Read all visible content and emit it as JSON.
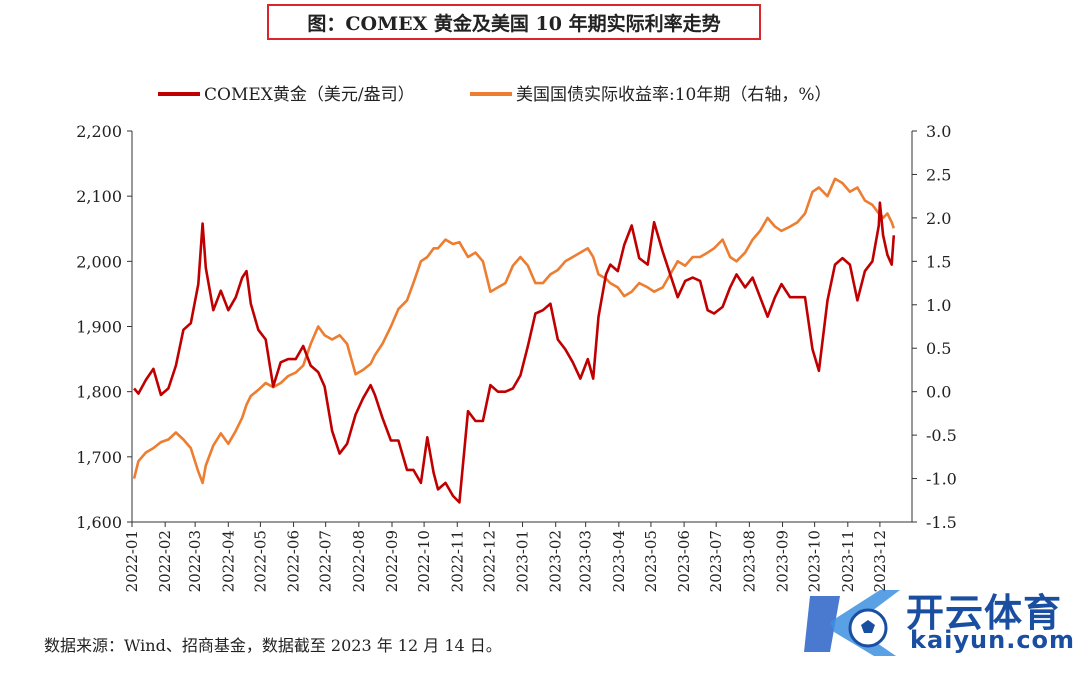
{
  "title": "图：COMEX 黄金及美国 10 年期实际利率走势",
  "source": "数据来源：Wind、招商基金，数据截至 2023 年 12 月 14 日。",
  "watermark": {
    "text": "开云体育",
    "sub": "kaiyun.com",
    "icon": "soccer-ball-icon"
  },
  "colors": {
    "gold": "#c00000",
    "rate": "#ed7d31",
    "title_border": "#d9262c",
    "watermark": "#1a4ea0"
  },
  "chart_data": {
    "type": "line",
    "legend_position": "top",
    "grid": false,
    "categories": [
      "2022-01",
      "2022-02",
      "2022-03",
      "2022-04",
      "2022-05",
      "2022-06",
      "2022-07",
      "2022-08",
      "2022-09",
      "2022-10",
      "2022-11",
      "2022-12",
      "2023-01",
      "2023-02",
      "2023-03",
      "2023-04",
      "2023-05",
      "2023-06",
      "2023-07",
      "2023-08",
      "2023-09",
      "2023-10",
      "2023-11",
      "2023-12"
    ],
    "y_left": {
      "ticks": [
        "1,600",
        "1,700",
        "1,800",
        "1,900",
        "2,000",
        "2,100",
        "2,200"
      ],
      "range": [
        1600,
        2200
      ]
    },
    "y_right": {
      "ticks": [
        "-1.5",
        "-1.0",
        "-0.5",
        "0.0",
        "0.5",
        "1.0",
        "1.5",
        "2.0",
        "2.5",
        "3.0"
      ],
      "range": [
        -1.5,
        3.0
      ]
    },
    "series": [
      {
        "name": "COMEX黄金（美元/盎司）",
        "axis": "left",
        "color": "#c00000",
        "points": [
          [
            "2022-01-03",
            1805
          ],
          [
            "2022-01-07",
            1797
          ],
          [
            "2022-01-14",
            1818
          ],
          [
            "2022-01-21",
            1835
          ],
          [
            "2022-01-28",
            1795
          ],
          [
            "2022-02-04",
            1805
          ],
          [
            "2022-02-11",
            1840
          ],
          [
            "2022-02-18",
            1895
          ],
          [
            "2022-02-25",
            1905
          ],
          [
            "2022-03-04",
            1965
          ],
          [
            "2022-03-08",
            2058
          ],
          [
            "2022-03-11",
            1990
          ],
          [
            "2022-03-18",
            1925
          ],
          [
            "2022-03-25",
            1955
          ],
          [
            "2022-04-01",
            1925
          ],
          [
            "2022-04-08",
            1945
          ],
          [
            "2022-04-14",
            1975
          ],
          [
            "2022-04-18",
            1985
          ],
          [
            "2022-04-22",
            1935
          ],
          [
            "2022-04-29",
            1895
          ],
          [
            "2022-05-06",
            1880
          ],
          [
            "2022-05-13",
            1808
          ],
          [
            "2022-05-20",
            1845
          ],
          [
            "2022-05-27",
            1850
          ],
          [
            "2022-06-03",
            1850
          ],
          [
            "2022-06-10",
            1870
          ],
          [
            "2022-06-17",
            1840
          ],
          [
            "2022-06-24",
            1830
          ],
          [
            "2022-06-30",
            1808
          ],
          [
            "2022-07-07",
            1740
          ],
          [
            "2022-07-14",
            1705
          ],
          [
            "2022-07-21",
            1720
          ],
          [
            "2022-07-29",
            1765
          ],
          [
            "2022-08-05",
            1790
          ],
          [
            "2022-08-12",
            1810
          ],
          [
            "2022-08-16",
            1795
          ],
          [
            "2022-08-23",
            1760
          ],
          [
            "2022-08-31",
            1725
          ],
          [
            "2022-09-07",
            1725
          ],
          [
            "2022-09-15",
            1680
          ],
          [
            "2022-09-21",
            1680
          ],
          [
            "2022-09-28",
            1660
          ],
          [
            "2022-10-04",
            1730
          ],
          [
            "2022-10-10",
            1675
          ],
          [
            "2022-10-14",
            1650
          ],
          [
            "2022-10-21",
            1660
          ],
          [
            "2022-10-28",
            1640
          ],
          [
            "2022-11-03",
            1630
          ],
          [
            "2022-11-11",
            1770
          ],
          [
            "2022-11-18",
            1755
          ],
          [
            "2022-11-25",
            1755
          ],
          [
            "2022-12-02",
            1810
          ],
          [
            "2022-12-09",
            1800
          ],
          [
            "2022-12-16",
            1800
          ],
          [
            "2022-12-23",
            1805
          ],
          [
            "2022-12-30",
            1825
          ],
          [
            "2023-01-06",
            1870
          ],
          [
            "2023-01-13",
            1920
          ],
          [
            "2023-01-20",
            1925
          ],
          [
            "2023-01-27",
            1935
          ],
          [
            "2023-02-03",
            1880
          ],
          [
            "2023-02-10",
            1865
          ],
          [
            "2023-02-17",
            1845
          ],
          [
            "2023-02-24",
            1820
          ],
          [
            "2023-03-03",
            1850
          ],
          [
            "2023-03-08",
            1820
          ],
          [
            "2023-03-13",
            1915
          ],
          [
            "2023-03-20",
            1980
          ],
          [
            "2023-03-24",
            1995
          ],
          [
            "2023-03-31",
            1985
          ],
          [
            "2023-04-06",
            2025
          ],
          [
            "2023-04-13",
            2055
          ],
          [
            "2023-04-20",
            2005
          ],
          [
            "2023-04-28",
            1995
          ],
          [
            "2023-05-04",
            2060
          ],
          [
            "2023-05-12",
            2015
          ],
          [
            "2023-05-19",
            1980
          ],
          [
            "2023-05-26",
            1945
          ],
          [
            "2023-06-02",
            1970
          ],
          [
            "2023-06-09",
            1975
          ],
          [
            "2023-06-16",
            1970
          ],
          [
            "2023-06-23",
            1925
          ],
          [
            "2023-06-29",
            1920
          ],
          [
            "2023-07-07",
            1930
          ],
          [
            "2023-07-14",
            1960
          ],
          [
            "2023-07-20",
            1980
          ],
          [
            "2023-07-28",
            1960
          ],
          [
            "2023-08-04",
            1975
          ],
          [
            "2023-08-11",
            1945
          ],
          [
            "2023-08-18",
            1915
          ],
          [
            "2023-08-25",
            1945
          ],
          [
            "2023-08-31",
            1965
          ],
          [
            "2023-09-08",
            1945
          ],
          [
            "2023-09-15",
            1945
          ],
          [
            "2023-09-22",
            1945
          ],
          [
            "2023-09-29",
            1865
          ],
          [
            "2023-10-05",
            1832
          ],
          [
            "2023-10-13",
            1940
          ],
          [
            "2023-10-20",
            1995
          ],
          [
            "2023-10-27",
            2005
          ],
          [
            "2023-11-03",
            1995
          ],
          [
            "2023-11-10",
            1940
          ],
          [
            "2023-11-17",
            1985
          ],
          [
            "2023-11-24",
            2000
          ],
          [
            "2023-11-30",
            2055
          ],
          [
            "2023-12-01",
            2090
          ],
          [
            "2023-12-04",
            2040
          ],
          [
            "2023-12-08",
            2010
          ],
          [
            "2023-12-12",
            1995
          ],
          [
            "2023-12-14",
            2040
          ]
        ]
      },
      {
        "name": "美国国债实际收益率:10年期（右轴，%）",
        "axis": "right",
        "color": "#ed7d31",
        "points": [
          [
            "2022-01-03",
            -1.0
          ],
          [
            "2022-01-07",
            -0.8
          ],
          [
            "2022-01-14",
            -0.7
          ],
          [
            "2022-01-21",
            -0.65
          ],
          [
            "2022-01-28",
            -0.58
          ],
          [
            "2022-02-04",
            -0.55
          ],
          [
            "2022-02-11",
            -0.47
          ],
          [
            "2022-02-18",
            -0.55
          ],
          [
            "2022-02-25",
            -0.65
          ],
          [
            "2022-03-04",
            -0.92
          ],
          [
            "2022-03-08",
            -1.05
          ],
          [
            "2022-03-11",
            -0.85
          ],
          [
            "2022-03-18",
            -0.62
          ],
          [
            "2022-03-25",
            -0.48
          ],
          [
            "2022-04-01",
            -0.6
          ],
          [
            "2022-04-08",
            -0.45
          ],
          [
            "2022-04-14",
            -0.3
          ],
          [
            "2022-04-18",
            -0.15
          ],
          [
            "2022-04-22",
            -0.05
          ],
          [
            "2022-04-29",
            0.02
          ],
          [
            "2022-05-06",
            0.1
          ],
          [
            "2022-05-13",
            0.05
          ],
          [
            "2022-05-20",
            0.1
          ],
          [
            "2022-05-27",
            0.18
          ],
          [
            "2022-06-03",
            0.22
          ],
          [
            "2022-06-10",
            0.3
          ],
          [
            "2022-06-17",
            0.55
          ],
          [
            "2022-06-24",
            0.75
          ],
          [
            "2022-06-30",
            0.65
          ],
          [
            "2022-07-07",
            0.6
          ],
          [
            "2022-07-14",
            0.65
          ],
          [
            "2022-07-21",
            0.55
          ],
          [
            "2022-07-29",
            0.2
          ],
          [
            "2022-08-05",
            0.25
          ],
          [
            "2022-08-12",
            0.32
          ],
          [
            "2022-08-16",
            0.42
          ],
          [
            "2022-08-23",
            0.55
          ],
          [
            "2022-08-31",
            0.75
          ],
          [
            "2022-09-07",
            0.95
          ],
          [
            "2022-09-15",
            1.05
          ],
          [
            "2022-09-21",
            1.25
          ],
          [
            "2022-09-28",
            1.5
          ],
          [
            "2022-10-04",
            1.55
          ],
          [
            "2022-10-10",
            1.65
          ],
          [
            "2022-10-14",
            1.65
          ],
          [
            "2022-10-21",
            1.75
          ],
          [
            "2022-10-28",
            1.7
          ],
          [
            "2022-11-03",
            1.72
          ],
          [
            "2022-11-11",
            1.55
          ],
          [
            "2022-11-18",
            1.6
          ],
          [
            "2022-11-25",
            1.5
          ],
          [
            "2022-12-02",
            1.15
          ],
          [
            "2022-12-09",
            1.2
          ],
          [
            "2022-12-16",
            1.25
          ],
          [
            "2022-12-23",
            1.45
          ],
          [
            "2022-12-30",
            1.55
          ],
          [
            "2023-01-06",
            1.45
          ],
          [
            "2023-01-13",
            1.25
          ],
          [
            "2023-01-20",
            1.25
          ],
          [
            "2023-01-27",
            1.35
          ],
          [
            "2023-02-03",
            1.4
          ],
          [
            "2023-02-10",
            1.5
          ],
          [
            "2023-02-17",
            1.55
          ],
          [
            "2023-02-24",
            1.6
          ],
          [
            "2023-03-03",
            1.65
          ],
          [
            "2023-03-08",
            1.55
          ],
          [
            "2023-03-13",
            1.35
          ],
          [
            "2023-03-20",
            1.3
          ],
          [
            "2023-03-24",
            1.25
          ],
          [
            "2023-03-31",
            1.2
          ],
          [
            "2023-04-06",
            1.1
          ],
          [
            "2023-04-13",
            1.15
          ],
          [
            "2023-04-20",
            1.25
          ],
          [
            "2023-04-28",
            1.2
          ],
          [
            "2023-05-04",
            1.15
          ],
          [
            "2023-05-12",
            1.2
          ],
          [
            "2023-05-19",
            1.35
          ],
          [
            "2023-05-26",
            1.5
          ],
          [
            "2023-06-02",
            1.45
          ],
          [
            "2023-06-09",
            1.55
          ],
          [
            "2023-06-16",
            1.55
          ],
          [
            "2023-06-23",
            1.6
          ],
          [
            "2023-06-29",
            1.65
          ],
          [
            "2023-07-07",
            1.75
          ],
          [
            "2023-07-14",
            1.55
          ],
          [
            "2023-07-20",
            1.5
          ],
          [
            "2023-07-28",
            1.6
          ],
          [
            "2023-08-04",
            1.75
          ],
          [
            "2023-08-11",
            1.85
          ],
          [
            "2023-08-18",
            2.0
          ],
          [
            "2023-08-25",
            1.9
          ],
          [
            "2023-08-31",
            1.85
          ],
          [
            "2023-09-08",
            1.9
          ],
          [
            "2023-09-15",
            1.95
          ],
          [
            "2023-09-22",
            2.05
          ],
          [
            "2023-09-29",
            2.3
          ],
          [
            "2023-10-05",
            2.35
          ],
          [
            "2023-10-13",
            2.25
          ],
          [
            "2023-10-20",
            2.45
          ],
          [
            "2023-10-27",
            2.4
          ],
          [
            "2023-11-03",
            2.3
          ],
          [
            "2023-11-10",
            2.35
          ],
          [
            "2023-11-17",
            2.2
          ],
          [
            "2023-11-24",
            2.15
          ],
          [
            "2023-11-30",
            2.05
          ],
          [
            "2023-12-01",
            2.05
          ],
          [
            "2023-12-04",
            2.0
          ],
          [
            "2023-12-08",
            2.05
          ],
          [
            "2023-12-12",
            1.95
          ],
          [
            "2023-12-14",
            1.88
          ]
        ]
      }
    ]
  }
}
